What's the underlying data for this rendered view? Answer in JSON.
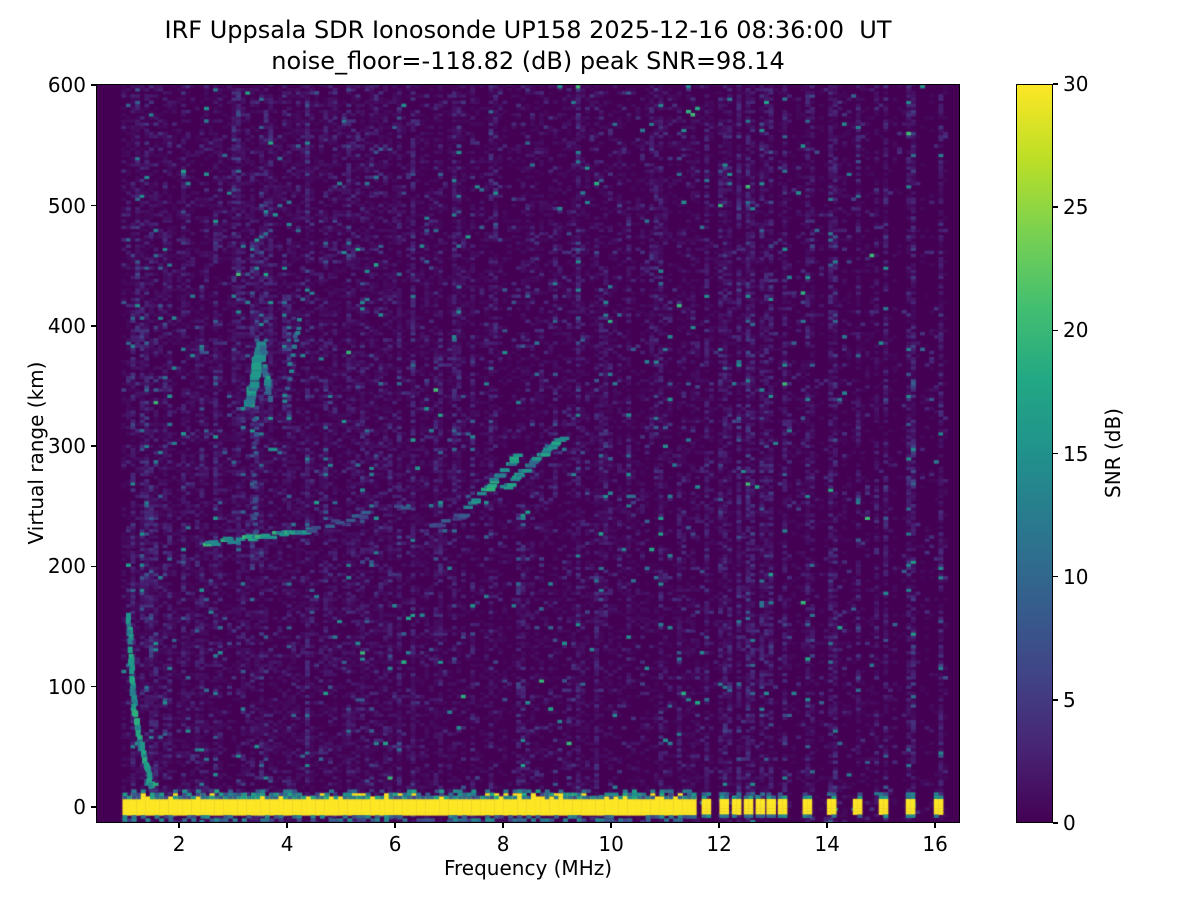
{
  "chart_data": {
    "type": "heatmap",
    "title": "IRF Uppsala SDR Ionosonde UP158 2025-12-16 08:36:00  UT",
    "subtitle": "noise_floor=-118.82 (dB) peak SNR=98.14",
    "station": "UP158",
    "timestamp": "2025-12-16 08:36:00 UT",
    "noise_floor_db": -118.82,
    "peak_snr_db": 98.14,
    "xlabel": "Frequency (MHz)",
    "ylabel": "Virtual range (km)",
    "xlim": [
      0.46,
      16.46
    ],
    "ylim": [
      -13.3,
      601
    ],
    "xticks": [
      2,
      4,
      6,
      8,
      10,
      12,
      14,
      16
    ],
    "yticks": [
      0,
      100,
      200,
      300,
      400,
      500,
      600
    ],
    "grid": false,
    "legend": null,
    "colorbar": {
      "label": "SNR (dB)",
      "vmin": 0,
      "vmax": 30,
      "ticks": [
        0,
        5,
        10,
        15,
        20,
        25,
        30
      ],
      "position": "right"
    },
    "colormap": {
      "name": "viridis",
      "stops": [
        [
          0.0,
          "#440154"
        ],
        [
          0.1,
          "#482475"
        ],
        [
          0.2,
          "#414487"
        ],
        [
          0.3,
          "#355f8d"
        ],
        [
          0.4,
          "#2a788e"
        ],
        [
          0.5,
          "#21918c"
        ],
        [
          0.6,
          "#22a884"
        ],
        [
          0.7,
          "#44bf70"
        ],
        [
          0.8,
          "#7ad151"
        ],
        [
          0.9,
          "#bddf26"
        ],
        [
          1.0,
          "#fde725"
        ]
      ]
    },
    "heatmap_model": {
      "comment": "Procedural description of the ionogram pixels: sparse teal noise speckles over a dark (0 dB) background, a saturated ground-return band near 0 km, transmitter spur bars above 11.7 MHz, and echo traces.",
      "seed": 20251216,
      "cell_w_mhz": 0.085,
      "cell_h_km": 2.6,
      "data_freq_range": [
        0.93,
        16.22
      ],
      "base_mean_db": 0.9,
      "dim_prob": 0.06,
      "speckle_prob": 0.012,
      "bright_prob": 0.0015,
      "streak_col_prob": 0.18,
      "streak_boost": 1.6,
      "region_mults": [
        [
          1.6,
          1.5
        ],
        [
          6.5,
          1.25
        ],
        [
          9.5,
          1.0
        ],
        [
          11.6,
          0.85
        ],
        [
          99,
          0.55
        ]
      ],
      "enhanced_columns": [
        {
          "f": 1.08,
          "km": [
            -10,
            430
          ],
          "boost": 2.2
        },
        {
          "f": 1.2,
          "km": [
            380,
            600
          ],
          "boost": 3.5
        },
        {
          "f": 1.3,
          "km": [
            150,
            420
          ],
          "boost": 1.8
        },
        {
          "f": 1.5,
          "km": [
            -5,
            250
          ],
          "boost": 2.0
        },
        {
          "f": 1.75,
          "km": [
            0,
            550
          ],
          "boost": 1.2
        },
        {
          "f": 2.05,
          "km": [
            100,
            600
          ],
          "boost": 1.6
        },
        {
          "f": 2.35,
          "km": [
            0,
            400
          ],
          "boost": 1.5
        },
        {
          "f": 2.62,
          "km": [
            150,
            500
          ],
          "boost": 1.3
        },
        {
          "f": 3.0,
          "km": [
            200,
            600
          ],
          "boost": 1.6
        },
        {
          "f": 3.35,
          "km": [
            200,
            470
          ],
          "boost": 2.2
        },
        {
          "f": 3.6,
          "km": [
            300,
            600
          ],
          "boost": 1.5
        },
        {
          "f": 3.95,
          "km": [
            320,
            425
          ],
          "boost": 2.0
        },
        {
          "f": 4.35,
          "km": [
            420,
            600
          ],
          "boost": 1.8
        },
        {
          "f": 4.65,
          "km": [
            100,
            350
          ],
          "boost": 1.2
        },
        {
          "f": 5.1,
          "km": [
            450,
            600
          ],
          "boost": 1.5
        },
        {
          "f": 5.35,
          "km": [
            80,
            430
          ],
          "boost": 1.6
        },
        {
          "f": 5.85,
          "km": [
            0,
            300
          ],
          "boost": 1.2
        },
        {
          "f": 6.3,
          "km": [
            350,
            550
          ],
          "boost": 1.4
        },
        {
          "f": 6.75,
          "km": [
            100,
            400
          ],
          "boost": 1.3
        },
        {
          "f": 7.1,
          "km": [
            250,
            600
          ],
          "boost": 1.5
        },
        {
          "f": 7.8,
          "km": [
            380,
            600
          ],
          "boost": 1.6
        },
        {
          "f": 8.3,
          "km": [
            0,
            250
          ],
          "boost": 1.3
        },
        {
          "f": 8.9,
          "km": [
            250,
            500
          ],
          "boost": 1.4
        },
        {
          "f": 9.35,
          "km": [
            400,
            600
          ],
          "boost": 1.8
        },
        {
          "f": 9.7,
          "km": [
            -5,
            200
          ],
          "boost": 1.6
        },
        {
          "f": 9.8,
          "km": [
            150,
            450
          ],
          "boost": 1.8
        },
        {
          "f": 10.3,
          "km": [
            100,
            500
          ],
          "boost": 1.4
        },
        {
          "f": 10.75,
          "km": [
            300,
            600
          ],
          "boost": 1.3
        },
        {
          "f": 11.2,
          "km": [
            0,
            300
          ],
          "boost": 1.2
        }
      ],
      "ground_band": {
        "f0": 0.95,
        "f1": 11.55,
        "km0": -6.8,
        "km1": 6.8,
        "snr": 30
      },
      "spurs": {
        "freqs": [
          11.74,
          12.07,
          12.3,
          12.52,
          12.74,
          12.94,
          13.15,
          13.61,
          14.06,
          14.54,
          15.02,
          15.52,
          16.04
        ],
        "width_mhz": 0.13,
        "band_km": [
          -6.2,
          6.0
        ],
        "snr": 30,
        "column_boost": 2.0
      },
      "traces": [
        {
          "name": "low-freq-hook",
          "pts": [
            [
              1.03,
              155
            ],
            [
              1.06,
              120
            ],
            [
              1.1,
              92
            ],
            [
              1.16,
              70
            ],
            [
              1.25,
              48
            ],
            [
              1.35,
              30
            ],
            [
              1.45,
              14
            ]
          ],
          "snr": 15,
          "prob": 0.95,
          "w": 1,
          "h": 2
        },
        {
          "name": "f-layer-flat",
          "pts": [
            [
              2.45,
              217
            ],
            [
              2.75,
              220
            ],
            [
              3.1,
              222
            ],
            [
              3.5,
              224
            ],
            [
              3.95,
              226
            ],
            [
              4.35,
              229
            ]
          ],
          "snr": 16,
          "prob": 0.8,
          "w": 2,
          "h": 1
        },
        {
          "name": "f-layer-faint",
          "pts": [
            [
              4.35,
              230
            ],
            [
              4.9,
              236
            ],
            [
              5.5,
              243
            ],
            [
              6.1,
              249
            ]
          ],
          "snr": 7,
          "prob": 0.5,
          "w": 2,
          "h": 1
        },
        {
          "name": "cusp-column",
          "pts": [
            [
              3.36,
              225
            ],
            [
              3.37,
              330
            ]
          ],
          "snr": 7,
          "prob": 0.55,
          "w": 1,
          "h": 1
        },
        {
          "name": "cusp-left",
          "pts": [
            [
              3.22,
              332
            ],
            [
              3.34,
              362
            ],
            [
              3.44,
              383
            ]
          ],
          "snr": 15,
          "prob": 0.95,
          "w": 2,
          "h": 2
        },
        {
          "name": "cusp-right",
          "pts": [
            [
              3.5,
              380
            ],
            [
              3.58,
              352
            ],
            [
              3.64,
              334
            ]
          ],
          "snr": 13,
          "prob": 0.85,
          "w": 1,
          "h": 2
        },
        {
          "name": "cusp-echo",
          "pts": [
            [
              3.9,
              330
            ],
            [
              4.05,
              372
            ],
            [
              4.2,
              408
            ]
          ],
          "snr": 11,
          "prob": 0.5,
          "w": 1,
          "h": 1
        },
        {
          "name": "second-lead-in",
          "pts": [
            [
              6.6,
              232
            ],
            [
              7.2,
              242
            ]
          ],
          "snr": 7,
          "prob": 0.5,
          "w": 2,
          "h": 1
        },
        {
          "name": "rising-trace-o",
          "pts": [
            [
              7.25,
              246
            ],
            [
              7.7,
              266
            ],
            [
              8.2,
              291
            ]
          ],
          "snr": 15,
          "prob": 0.8,
          "w": 2,
          "h": 1
        },
        {
          "name": "rising-trace-x",
          "pts": [
            [
              7.95,
              264
            ],
            [
              8.5,
              286
            ],
            [
              9.05,
              307
            ]
          ],
          "snr": 14,
          "prob": 0.75,
          "w": 2,
          "h": 1
        }
      ]
    }
  }
}
